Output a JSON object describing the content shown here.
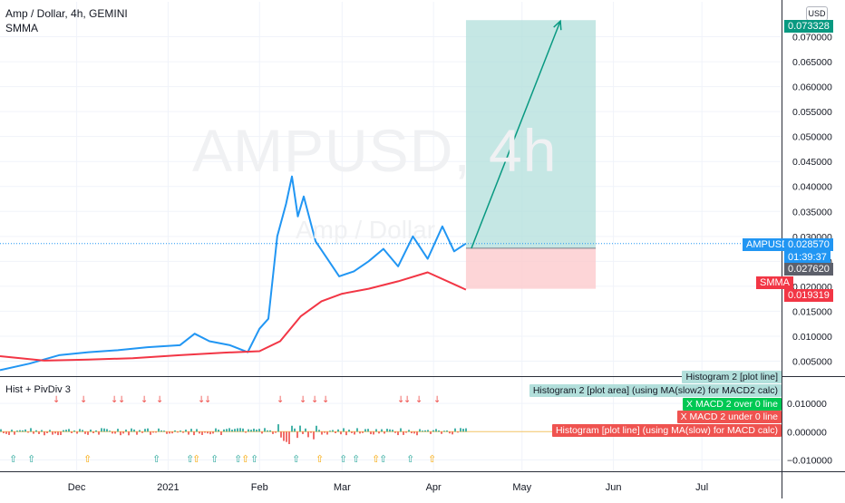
{
  "header": {
    "title": "Amp / Dollar, 4h, GEMINI",
    "indicator": "SMMA",
    "watermark": "AMPUSD, 4h",
    "watermark_sub": "Amp / Dollar",
    "currency_badge": "USD",
    "lower_pane_title": "Hist + PivDiv 3"
  },
  "price_labels": {
    "target": "0.073328",
    "ampusd_name": "AMPUSD",
    "ampusd_price": "0.028570",
    "countdown": "01:39:37",
    "entry": "0.027620",
    "smma_name": "SMMA",
    "smma_value": "0.019319"
  },
  "lower_legend": [
    {
      "text": "Histogram 2 [plot line]",
      "color": "#b2dfdb",
      "text_color": "#131722"
    },
    {
      "text": "Histogram 2 [plot area] (using MA(slow2) for MACD2 calc)",
      "color": "#b2dfdb",
      "text_color": "#131722"
    },
    {
      "text": "X MACD 2 over 0 line",
      "color": "#00c853",
      "text_color": "#ffffff"
    },
    {
      "text": "X MACD 2 under 0 line",
      "color": "#ef5350",
      "text_color": "#ffffff"
    },
    {
      "text": "Histogram [plot line] (using MA(slow) for MACD calc)",
      "color": "#ef5350",
      "text_color": "#ffffff"
    }
  ],
  "colors": {
    "price": "#2196f3",
    "smma": "#f23645",
    "target_zone": "#b2dfdb",
    "stop_zone": "#fccbcd",
    "arrow": "#089981",
    "grid": "#f0f3fa"
  },
  "chart_data": [
    {
      "type": "line",
      "title": "Amp / Dollar, 4h, GEMINI",
      "y_axis_ticks": [
        0.005,
        0.01,
        0.015,
        0.02,
        0.025,
        0.03,
        0.035,
        0.04,
        0.045,
        0.05,
        0.055,
        0.06,
        0.065,
        0.07
      ],
      "y_tick_labels": [
        "0.005000",
        "0.010000",
        "0.015000",
        "0.020000",
        "0.025000",
        "0.030000",
        "0.035000",
        "0.040000",
        "0.045000",
        "0.050000",
        "0.055000",
        "0.060000",
        "0.065000",
        "0.070000"
      ],
      "ylim": [
        0.002,
        0.077
      ],
      "x_tick_labels": [
        "Dec",
        "2021",
        "Feb",
        "Mar",
        "Apr",
        "May",
        "Jun",
        "Jul"
      ],
      "xlim": [
        "2020-11-05",
        "2021-07-28"
      ],
      "series": [
        {
          "name": "AMPUSD",
          "x": [
            "2020-11-05",
            "2020-11-15",
            "2020-11-25",
            "2020-12-05",
            "2020-12-15",
            "2020-12-25",
            "2021-01-05",
            "2021-01-10",
            "2021-01-15",
            "2021-01-22",
            "2021-01-28",
            "2021-02-01",
            "2021-02-04",
            "2021-02-07",
            "2021-02-10",
            "2021-02-12",
            "2021-02-14",
            "2021-02-16",
            "2021-02-20",
            "2021-02-24",
            "2021-02-28",
            "2021-03-05",
            "2021-03-10",
            "2021-03-15",
            "2021-03-20",
            "2021-03-25",
            "2021-03-30",
            "2021-04-04",
            "2021-04-08",
            "2021-04-12"
          ],
          "y": [
            0.0032,
            0.0045,
            0.0062,
            0.0068,
            0.0072,
            0.0078,
            0.0082,
            0.0105,
            0.009,
            0.0082,
            0.0068,
            0.0115,
            0.0135,
            0.03,
            0.0365,
            0.042,
            0.034,
            0.038,
            0.029,
            0.0255,
            0.022,
            0.023,
            0.025,
            0.0275,
            0.024,
            0.03,
            0.0255,
            0.032,
            0.027,
            0.02857
          ]
        },
        {
          "name": "SMMA",
          "x": [
            "2020-11-05",
            "2020-11-20",
            "2020-12-05",
            "2020-12-20",
            "2021-01-05",
            "2021-01-20",
            "2021-02-01",
            "2021-02-08",
            "2021-02-15",
            "2021-02-22",
            "2021-03-01",
            "2021-03-10",
            "2021-03-20",
            "2021-03-30",
            "2021-04-12"
          ],
          "y": [
            0.006,
            0.0051,
            0.0053,
            0.0056,
            0.0062,
            0.0067,
            0.007,
            0.009,
            0.014,
            0.017,
            0.0185,
            0.0195,
            0.021,
            0.0228,
            0.019319
          ]
        }
      ],
      "position_tool": {
        "entry": 0.02762,
        "target": 0.073328,
        "stop": 0.0195,
        "start": "2021-04-12",
        "end": "2021-05-26"
      }
    },
    {
      "type": "bar",
      "title": "Hist + PivDiv 3",
      "y_axis_ticks": [
        -0.01,
        0.0,
        0.01
      ],
      "y_tick_labels": [
        "−0.010000",
        "0.000000",
        "0.010000"
      ],
      "ylim": [
        -0.014,
        0.019
      ]
    }
  ]
}
